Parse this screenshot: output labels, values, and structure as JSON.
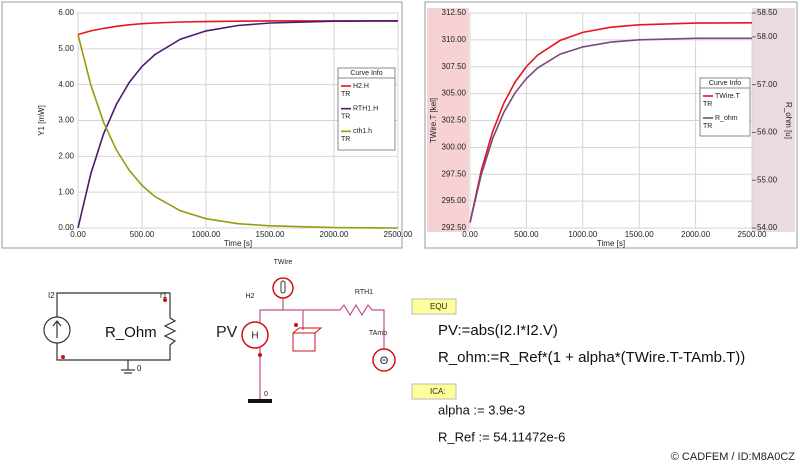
{
  "chart_data": [
    {
      "type": "line",
      "xlabel": "Time [s]",
      "ylabel": "Y1 [mW]",
      "legend_title": "Curve Info",
      "x": [
        0,
        100,
        200,
        300,
        400,
        500,
        600,
        800,
        1000,
        1250,
        1500,
        2000,
        2500
      ],
      "xlim": [
        0,
        2500
      ],
      "xticks": [
        {
          "value": 0,
          "label": "0.00"
        },
        {
          "value": 500,
          "label": "500.00"
        },
        {
          "value": 1000,
          "label": "1000.00"
        },
        {
          "value": 1500,
          "label": "1500.00"
        },
        {
          "value": 2000,
          "label": "2000.00"
        },
        {
          "value": 2500,
          "label": "2500.00"
        }
      ],
      "ylim": [
        0,
        6
      ],
      "yticks": [
        {
          "value": 0,
          "label": "0.00"
        },
        {
          "value": 1,
          "label": "1.00"
        },
        {
          "value": 2,
          "label": "2.00"
        },
        {
          "value": 3,
          "label": "3.00"
        },
        {
          "value": 4,
          "label": "4.00"
        },
        {
          "value": 5,
          "label": "5.00"
        },
        {
          "value": 6,
          "label": "6.00"
        }
      ],
      "grid": true,
      "series": [
        {
          "name": "H2.H",
          "sub": "TR",
          "color": "#e8141e",
          "values": [
            5.4,
            5.5,
            5.57,
            5.63,
            5.67,
            5.7,
            5.72,
            5.75,
            5.76,
            5.77,
            5.78,
            5.78,
            5.78
          ]
        },
        {
          "name": "RTH1.H",
          "sub": "TR",
          "color": "#4b1a6e",
          "values": [
            0,
            1.51,
            2.63,
            3.45,
            4.06,
            4.51,
            4.84,
            5.27,
            5.5,
            5.65,
            5.72,
            5.77,
            5.78
          ]
        },
        {
          "name": "cth1.h",
          "sub": "TR",
          "color": "#9a9a10",
          "values": [
            5.4,
            3.99,
            2.95,
            2.18,
            1.61,
            1.19,
            0.88,
            0.48,
            0.26,
            0.12,
            0.06,
            0.01,
            0.0
          ]
        }
      ]
    },
    {
      "type": "line",
      "xlabel": "Time [s]",
      "ylabel": "TWire.T [kel]",
      "y2label": "R_ohm [u]",
      "legend_title": "Curve Info",
      "x": [
        0,
        100,
        200,
        300,
        400,
        500,
        600,
        800,
        1000,
        1250,
        1500,
        2000,
        2500
      ],
      "xlim": [
        0,
        2500
      ],
      "xticks": [
        {
          "value": 0,
          "label": "0.00"
        },
        {
          "value": 500,
          "label": "500.00"
        },
        {
          "value": 1000,
          "label": "1000.00"
        },
        {
          "value": 1500,
          "label": "1500.00"
        },
        {
          "value": 2000,
          "label": "2000.00"
        },
        {
          "value": 2500,
          "label": "2500.00"
        }
      ],
      "ylim": [
        292.5,
        312.5
      ],
      "yticks": [
        {
          "value": 292.5,
          "label": "292.50"
        },
        {
          "value": 295,
          "label": "295.00"
        },
        {
          "value": 297.5,
          "label": "297.50"
        },
        {
          "value": 300,
          "label": "300.00"
        },
        {
          "value": 302.5,
          "label": "302.50"
        },
        {
          "value": 305,
          "label": "305.00"
        },
        {
          "value": 307.5,
          "label": "307.50"
        },
        {
          "value": 310,
          "label": "310.00"
        },
        {
          "value": 312.5,
          "label": "312.50"
        }
      ],
      "y2lim": [
        54,
        58.5
      ],
      "y2ticks": [
        {
          "value": 54,
          "label": "54.00"
        },
        {
          "value": 55,
          "label": "55.00"
        },
        {
          "value": 56,
          "label": "56.00"
        },
        {
          "value": 57,
          "label": "57.00"
        },
        {
          "value": 58,
          "label": "58.00"
        },
        {
          "value": 58.5,
          "label": "58.50"
        }
      ],
      "grid": true,
      "series": [
        {
          "name": "TWire.T",
          "sub": "TR",
          "color": "#e8141e",
          "values": [
            293.0,
            297.86,
            301.45,
            304.11,
            306.07,
            307.51,
            308.58,
            309.95,
            310.7,
            311.18,
            311.4,
            311.56,
            311.59
          ]
        },
        {
          "name": "R_ohm",
          "sub": "TR",
          "color": "#7b4a7a",
          "axis": "y2",
          "values": [
            54.11,
            55.12,
            55.87,
            56.42,
            56.83,
            57.13,
            57.35,
            57.64,
            57.79,
            57.89,
            57.94,
            57.97,
            57.97
          ]
        }
      ]
    }
  ],
  "schematic": {
    "left": {
      "source": "I2",
      "resistor": "r1",
      "resistor_label": "R_Ohm",
      "ground": "0"
    },
    "middle": {
      "probe": "TWire",
      "heater": "H2",
      "heater_symbol": "H",
      "power": "PV",
      "resistor": "RTH1",
      "ambient": "TAmb",
      "ground": "0"
    },
    "equations": {
      "header": "EQU",
      "lines": [
        "PV:=abs(I2.I*I2.V)",
        "R_ohm:=R_Ref*(1 + alpha*(TWire.T-TAmb.T))"
      ]
    },
    "initial": {
      "header": "ICA:",
      "lines": [
        "alpha := 3.9e-3",
        "R_Ref := 54.11472e-6"
      ]
    }
  },
  "copyright": "© CADFEM / ID:M8A0CZ"
}
